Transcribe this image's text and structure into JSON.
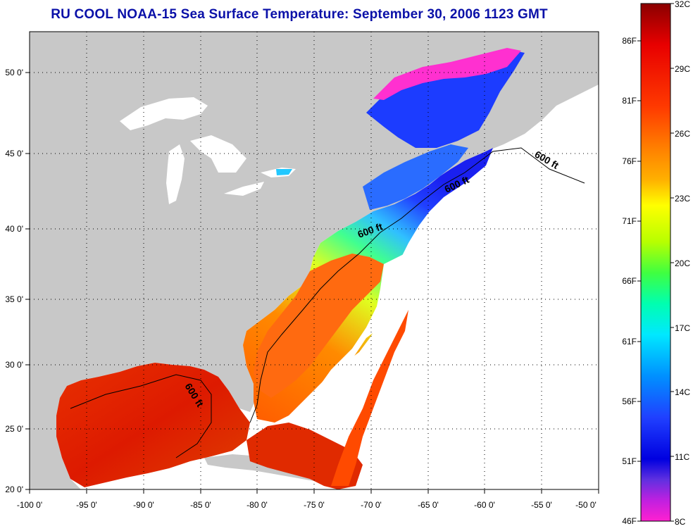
{
  "title": "RU COOL  NOAA-15  Sea Surface Temperature:  September 30, 2006 1123 GMT",
  "map": {
    "lon_range": [
      -100,
      -50
    ],
    "lat_range": [
      20,
      52.5
    ],
    "lon_ticks": [
      "-100 0'",
      "-95 0'",
      "-90 0'",
      "-85 0'",
      "-80 0'",
      "-75 0'",
      "-70 0'",
      "-65 0'",
      "-60 0'",
      "-55 0'",
      "-50 0'"
    ],
    "lat_ticks": [
      "20 0'",
      "25 0'",
      "30 0'",
      "35 0'",
      "40 0'",
      "45 0'",
      "50 0'"
    ],
    "grid": "dotted",
    "land_color": "#c8c8c8",
    "no_data_color": "#ffffff",
    "isobath_labels": [
      "600 ft",
      "600 ft",
      "600 ft",
      "600 ft"
    ]
  },
  "colorbar": {
    "celsius_labels": [
      "32C",
      "29C",
      "26C",
      "23C",
      "20C",
      "17C",
      "14C",
      "11C",
      "8C"
    ],
    "fahrenheit_labels": [
      "86F",
      "81F",
      "76F",
      "71F",
      "66F",
      "61F",
      "56F",
      "51F",
      "46F"
    ],
    "range_c": [
      8,
      32
    ]
  }
}
